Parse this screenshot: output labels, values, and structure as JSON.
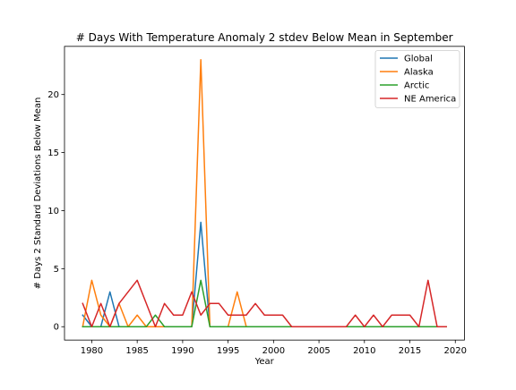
{
  "chart_data": {
    "type": "line",
    "title": "# Days With Temperature Anomaly 2 stdev Below Mean in September",
    "xlabel": "Year",
    "ylabel": "# Days 2 Standard Deviations Below Mean",
    "xlim": [
      1977,
      2021
    ],
    "ylim": [
      -1.15,
      24.15
    ],
    "xticks": [
      1980,
      1985,
      1990,
      1995,
      2000,
      2005,
      2010,
      2015,
      2020
    ],
    "yticks": [
      0,
      5,
      10,
      15,
      20
    ],
    "grid": false,
    "legend_position": "top-right",
    "x": [
      1979,
      1980,
      1981,
      1982,
      1983,
      1984,
      1985,
      1986,
      1987,
      1988,
      1989,
      1990,
      1991,
      1992,
      1993,
      1994,
      1995,
      1996,
      1997,
      1998,
      1999,
      2000,
      2001,
      2002,
      2003,
      2004,
      2005,
      2006,
      2007,
      2008,
      2009,
      2010,
      2011,
      2012,
      2013,
      2014,
      2015,
      2016,
      2017,
      2018,
      2019
    ],
    "series": [
      {
        "name": "Global",
        "color": "#1f77b4",
        "values": [
          1,
          0,
          0,
          3,
          0,
          0,
          0,
          0,
          0,
          0,
          0,
          0,
          0,
          9,
          0,
          0,
          0,
          0,
          0,
          0,
          0,
          0,
          0,
          0,
          0,
          0,
          0,
          0,
          0,
          0,
          0,
          0,
          0,
          0,
          0,
          0,
          0,
          0,
          0,
          0,
          0
        ]
      },
      {
        "name": "Alaska",
        "color": "#ff7f0e",
        "values": [
          0,
          4,
          1,
          0,
          2,
          0,
          1,
          0,
          0,
          0,
          0,
          0,
          0,
          23,
          0,
          0,
          0,
          3,
          0,
          0,
          0,
          0,
          0,
          0,
          0,
          0,
          0,
          0,
          0,
          0,
          0,
          0,
          0,
          0,
          0,
          0,
          0,
          0,
          0,
          0,
          0
        ]
      },
      {
        "name": "Arctic",
        "color": "#2ca02c",
        "values": [
          0,
          0,
          0,
          0,
          0,
          0,
          0,
          0,
          1,
          0,
          0,
          0,
          0,
          4,
          0,
          0,
          0,
          0,
          0,
          0,
          0,
          0,
          0,
          0,
          0,
          0,
          0,
          0,
          0,
          0,
          0,
          0,
          0,
          0,
          0,
          0,
          0,
          0,
          0,
          0,
          0
        ]
      },
      {
        "name": "NE America",
        "color": "#d62728",
        "values": [
          2,
          0,
          2,
          0,
          2,
          3,
          4,
          2,
          0,
          2,
          1,
          1,
          3,
          1,
          2,
          2,
          1,
          1,
          1,
          2,
          1,
          1,
          1,
          0,
          0,
          0,
          0,
          0,
          0,
          0,
          1,
          0,
          1,
          0,
          1,
          1,
          1,
          0,
          4,
          0,
          0
        ]
      }
    ]
  }
}
